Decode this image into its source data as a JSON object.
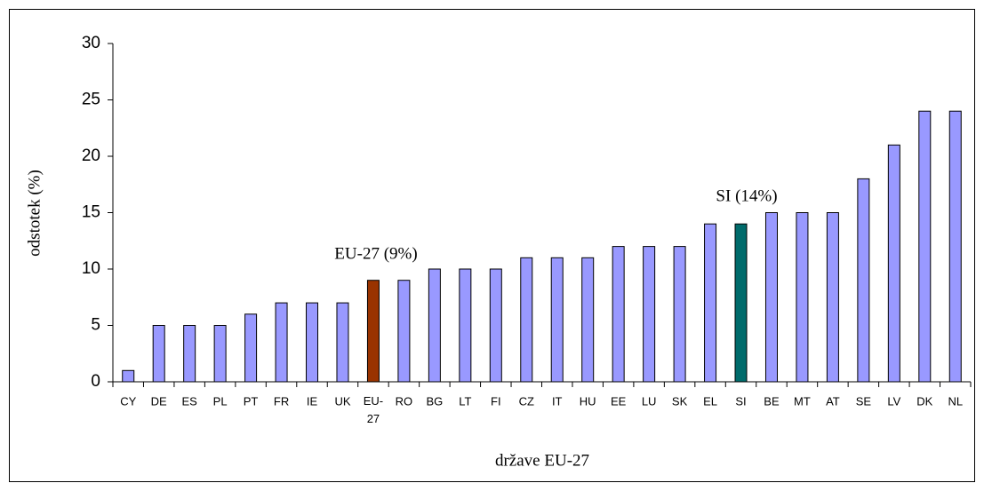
{
  "chart_data": {
    "type": "bar",
    "x_label": "države EU-27",
    "y_label": "odstotek (%)",
    "annotations": [
      "EU-27 (9%)",
      "SI (14%)"
    ],
    "categories": [
      "CY",
      "DE",
      "ES",
      "PL",
      "PT",
      "FR",
      "IE",
      "UK",
      "EU-27",
      "RO",
      "BG",
      "LT",
      "FI",
      "CZ",
      "IT",
      "HU",
      "EE",
      "LU",
      "SK",
      "EL",
      "SI",
      "BE",
      "MT",
      "AT",
      "SE",
      "LV",
      "DK",
      "NL"
    ],
    "values": [
      1,
      5,
      5,
      5,
      6,
      7,
      7,
      7,
      9,
      9,
      10,
      10,
      10,
      11,
      11,
      11,
      12,
      12,
      12,
      14,
      14,
      15,
      15,
      15,
      18,
      21,
      24,
      24
    ],
    "colors": [
      "#9999ff",
      "#9999ff",
      "#9999ff",
      "#9999ff",
      "#9999ff",
      "#9999ff",
      "#9999ff",
      "#9999ff",
      "#993300",
      "#9999ff",
      "#9999ff",
      "#9999ff",
      "#9999ff",
      "#9999ff",
      "#9999ff",
      "#9999ff",
      "#9999ff",
      "#9999ff",
      "#9999ff",
      "#9999ff",
      "#006b6b",
      "#9999ff",
      "#9999ff",
      "#9999ff",
      "#9999ff",
      "#9999ff",
      "#9999ff",
      "#9999ff"
    ],
    "ylim": [
      0,
      30
    ],
    "yticks": [
      0,
      5,
      10,
      15,
      20,
      25,
      30
    ],
    "grid": false
  }
}
